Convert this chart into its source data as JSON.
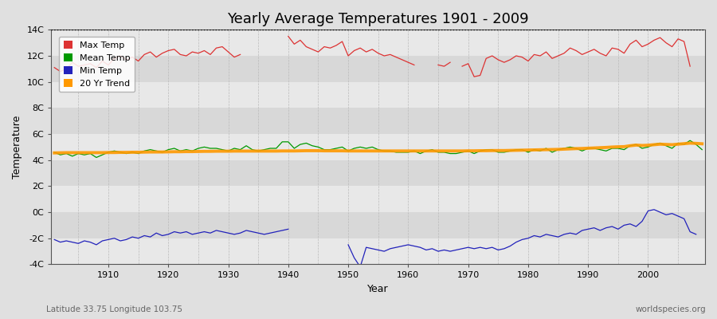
{
  "title": "Yearly Average Temperatures 1901 - 2009",
  "xlabel": "Year",
  "ylabel": "Temperature",
  "lat_lon_label": "Latitude 33.75 Longitude 103.75",
  "source_label": "worldspecies.org",
  "years": [
    1901,
    1902,
    1903,
    1904,
    1905,
    1906,
    1907,
    1908,
    1909,
    1910,
    1911,
    1912,
    1913,
    1914,
    1915,
    1916,
    1917,
    1918,
    1919,
    1920,
    1921,
    1922,
    1923,
    1924,
    1925,
    1926,
    1927,
    1928,
    1929,
    1930,
    1931,
    1932,
    1933,
    1934,
    1935,
    1936,
    1937,
    1938,
    1939,
    1940,
    1941,
    1942,
    1943,
    1944,
    1945,
    1946,
    1947,
    1948,
    1949,
    1950,
    1951,
    1952,
    1953,
    1954,
    1955,
    1956,
    1957,
    1958,
    1959,
    1960,
    1961,
    1962,
    1963,
    1964,
    1965,
    1966,
    1967,
    1968,
    1969,
    1970,
    1971,
    1972,
    1973,
    1974,
    1975,
    1976,
    1977,
    1978,
    1979,
    1980,
    1981,
    1982,
    1983,
    1984,
    1985,
    1986,
    1987,
    1988,
    1989,
    1990,
    1991,
    1992,
    1993,
    1994,
    1995,
    1996,
    1997,
    1998,
    1999,
    2000,
    2001,
    2002,
    2003,
    2004,
    2005,
    2006,
    2007,
    2008,
    2009
  ],
  "max_temp": [
    11.1,
    10.8,
    11.0,
    11.5,
    11.2,
    11.3,
    11.4,
    11.1,
    11.6,
    11.3,
    11.8,
    12.0,
    11.7,
    11.9,
    11.6,
    12.1,
    12.3,
    11.9,
    12.2,
    12.4,
    12.5,
    12.1,
    12.0,
    12.3,
    12.2,
    12.4,
    12.1,
    12.6,
    12.7,
    12.3,
    11.9,
    12.1,
    null,
    null,
    null,
    null,
    null,
    null,
    null,
    13.5,
    12.9,
    13.2,
    12.7,
    12.5,
    12.3,
    12.7,
    12.6,
    12.8,
    13.1,
    12.0,
    12.4,
    12.6,
    12.3,
    12.5,
    12.2,
    12.0,
    12.1,
    11.9,
    11.7,
    11.5,
    11.3,
    null,
    null,
    null,
    11.3,
    11.2,
    11.5,
    null,
    11.2,
    11.4,
    10.4,
    10.5,
    11.8,
    12.0,
    11.7,
    11.5,
    11.7,
    12.0,
    11.9,
    11.6,
    12.1,
    12.0,
    12.3,
    11.8,
    12.0,
    12.2,
    12.6,
    12.4,
    12.1,
    12.3,
    12.5,
    12.2,
    12.0,
    12.6,
    12.5,
    12.2,
    12.9,
    13.2,
    12.7,
    12.9,
    13.2,
    13.4,
    13.0,
    12.7,
    13.3,
    13.1,
    11.2
  ],
  "mean_temp": [
    4.6,
    4.4,
    4.5,
    4.3,
    4.5,
    4.4,
    4.5,
    4.2,
    4.4,
    4.6,
    4.7,
    4.6,
    4.5,
    4.6,
    4.5,
    4.7,
    4.8,
    4.7,
    4.6,
    4.8,
    4.9,
    4.7,
    4.8,
    4.7,
    4.9,
    5.0,
    4.9,
    4.9,
    4.8,
    4.7,
    4.9,
    4.8,
    5.1,
    4.8,
    4.7,
    4.8,
    4.9,
    4.9,
    5.4,
    5.4,
    4.9,
    5.2,
    5.3,
    5.1,
    5.0,
    4.8,
    4.8,
    4.9,
    5.0,
    4.7,
    4.9,
    5.0,
    4.9,
    5.0,
    4.8,
    4.7,
    4.7,
    4.6,
    4.6,
    4.6,
    4.7,
    4.5,
    4.7,
    4.8,
    4.6,
    4.6,
    4.5,
    4.5,
    4.6,
    4.7,
    4.5,
    4.7,
    4.8,
    4.8,
    4.6,
    4.6,
    4.7,
    4.8,
    4.8,
    4.6,
    4.8,
    4.7,
    4.9,
    4.6,
    4.8,
    4.9,
    5.0,
    4.9,
    4.7,
    4.9,
    4.9,
    4.8,
    4.7,
    4.9,
    4.9,
    4.8,
    5.1,
    5.2,
    4.9,
    5.0,
    5.2,
    5.3,
    5.1,
    4.9,
    5.3,
    5.2,
    5.5,
    5.2,
    4.8
  ],
  "min_temp": [
    -2.1,
    -2.3,
    -2.2,
    -2.3,
    -2.4,
    -2.2,
    -2.3,
    -2.5,
    -2.2,
    -2.1,
    -2.0,
    -2.2,
    -2.1,
    -1.9,
    -2.0,
    -1.8,
    -1.9,
    -1.6,
    -1.8,
    -1.7,
    -1.5,
    -1.6,
    -1.5,
    -1.7,
    -1.6,
    -1.5,
    -1.6,
    -1.4,
    -1.5,
    -1.6,
    -1.7,
    -1.6,
    -1.4,
    -1.5,
    -1.6,
    -1.7,
    -1.6,
    -1.5,
    -1.4,
    -1.3,
    null,
    null,
    null,
    null,
    null,
    null,
    null,
    null,
    null,
    -2.5,
    -3.5,
    -4.2,
    -2.7,
    -2.8,
    -2.9,
    -3.0,
    -2.8,
    -2.7,
    -2.6,
    -2.5,
    -2.6,
    -2.7,
    -2.9,
    -2.8,
    -3.0,
    -2.9,
    -3.0,
    -2.9,
    -2.8,
    -2.7,
    -2.8,
    -2.7,
    -2.8,
    -2.7,
    -2.9,
    -2.8,
    -2.6,
    -2.3,
    -2.1,
    -2.0,
    -1.8,
    -1.9,
    -1.7,
    -1.8,
    -1.9,
    -1.7,
    -1.6,
    -1.7,
    -1.4,
    -1.3,
    -1.2,
    -1.4,
    -1.2,
    -1.1,
    -1.3,
    -1.0,
    -0.9,
    -1.1,
    -0.7,
    0.1,
    0.2,
    0.0,
    -0.2,
    -0.1,
    -0.3,
    -0.5,
    -1.5,
    -1.7
  ],
  "trend_values_years": [
    1901,
    1902,
    1903,
    1904,
    1905,
    1906,
    1907,
    1908,
    1909,
    1910,
    1911,
    1912,
    1913,
    1914,
    1915,
    1916,
    1917,
    1918,
    1919,
    1920,
    1921,
    1922,
    1923,
    1924,
    1925,
    1926,
    1927,
    1928,
    1929,
    1930,
    1931,
    1932,
    1933,
    1934,
    1935,
    1936,
    1937,
    1938,
    1939,
    1940,
    1941,
    1942,
    1943,
    1944,
    1945,
    1946,
    1947,
    1948,
    1949,
    1950,
    1951,
    1952,
    1953,
    1954,
    1955,
    1956,
    1957,
    1958,
    1959,
    1960,
    1961,
    1962,
    1963,
    1964,
    1965,
    1966,
    1967,
    1968,
    1969,
    1970,
    1971,
    1972,
    1973,
    1974,
    1975,
    1976,
    1977,
    1978,
    1979,
    1980,
    1981,
    1982,
    1983,
    1984,
    1985,
    1986,
    1987,
    1988,
    1989,
    1990,
    1991,
    1992,
    1993,
    1994,
    1995,
    1996,
    1997,
    1998,
    1999,
    2000,
    2001,
    2002,
    2003,
    2004,
    2005,
    2006,
    2007,
    2008,
    2009
  ],
  "trend_values": [
    4.55,
    4.56,
    4.57,
    4.57,
    4.57,
    4.57,
    4.57,
    4.57,
    4.57,
    4.58,
    4.58,
    4.59,
    4.59,
    4.6,
    4.6,
    4.61,
    4.62,
    4.62,
    4.62,
    4.63,
    4.64,
    4.64,
    4.65,
    4.65,
    4.66,
    4.67,
    4.67,
    4.68,
    4.68,
    4.68,
    4.69,
    4.69,
    4.69,
    4.69,
    4.69,
    4.69,
    4.69,
    4.69,
    4.7,
    4.7,
    4.7,
    4.71,
    4.72,
    4.72,
    4.72,
    4.71,
    4.71,
    4.71,
    4.71,
    4.7,
    4.7,
    4.7,
    4.7,
    4.7,
    4.7,
    4.7,
    4.7,
    4.7,
    4.7,
    4.7,
    4.7,
    4.7,
    4.7,
    4.7,
    4.7,
    4.7,
    4.7,
    4.7,
    4.7,
    4.71,
    4.71,
    4.72,
    4.72,
    4.73,
    4.73,
    4.73,
    4.74,
    4.75,
    4.76,
    4.77,
    4.78,
    4.79,
    4.8,
    4.81,
    4.82,
    4.84,
    4.86,
    4.88,
    4.89,
    4.91,
    4.93,
    4.95,
    4.97,
    5.0,
    5.02,
    5.03,
    5.1,
    5.15,
    5.12,
    5.14,
    5.18,
    5.22,
    5.2,
    5.18,
    5.22,
    5.26,
    5.3,
    5.28,
    5.25
  ],
  "bg_color": "#e0e0e0",
  "band_colors": [
    "#e8e8e8",
    "#d8d8d8"
  ],
  "grid_color": "#cccccc",
  "max_color": "#dd3333",
  "mean_color": "#009900",
  "min_color": "#2222bb",
  "trend_color": "#ff9900",
  "ylim": [
    -4,
    14
  ],
  "yticks": [
    -4,
    -2,
    0,
    2,
    4,
    6,
    8,
    10,
    12,
    14
  ],
  "ytick_labels": [
    "-4C",
    "-2C",
    "0C",
    "2C",
    "4C",
    "6C",
    "8C",
    "10C",
    "12C",
    "14C"
  ],
  "title_fontsize": 13,
  "axis_fontsize": 9,
  "tick_fontsize": 8,
  "legend_fontsize": 8
}
